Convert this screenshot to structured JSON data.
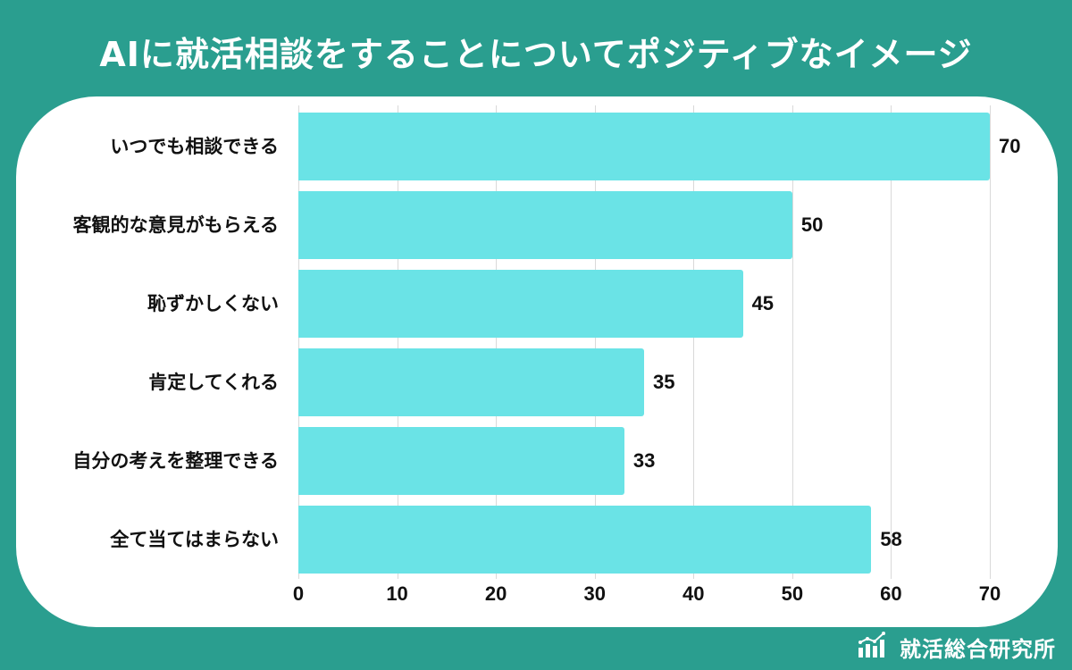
{
  "header": {
    "title": "AIに就活相談をすることについてポジティブなイメージ"
  },
  "colors": {
    "background": "#2a9e8f",
    "card": "#ffffff",
    "bar": "#6ae3e6",
    "grid": "#d9d9d9",
    "text": "#111111"
  },
  "footer": {
    "brand_name": "就活総合研究所",
    "brand_icon": "bar-chart-logo-icon"
  },
  "chart_data": {
    "type": "bar",
    "orientation": "horizontal",
    "title": "AIに就活相談をすることについてポジティブなイメージ",
    "xlabel": "",
    "ylabel": "",
    "categories": [
      "いつでも相談できる",
      "客観的な意見がもらえる",
      "恥ずかしくない",
      "肯定してくれる",
      "自分の考えを整理できる",
      "全て当てはまらない"
    ],
    "values": [
      70,
      50,
      45,
      35,
      33,
      58
    ],
    "value_labels": [
      "70",
      "50",
      "45",
      "35",
      "33",
      "58"
    ],
    "xlim": [
      0,
      70
    ],
    "x_ticks": [
      "0",
      "10",
      "20",
      "30",
      "40",
      "50",
      "60",
      "70"
    ],
    "grid": "vertical",
    "legend": "none",
    "source": "就活総合研究所"
  }
}
